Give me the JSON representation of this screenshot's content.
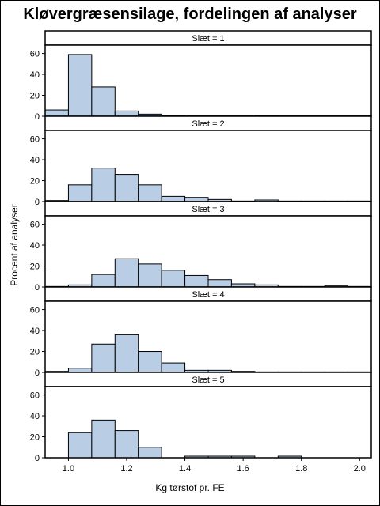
{
  "chart_data": {
    "type": "bar",
    "title": "Kløvergræsensilage, fordelingen af analyser",
    "xlabel": "Kg tørstof pr. FE",
    "ylabel": "Procent af analyser",
    "xlim": [
      0.92,
      2.04
    ],
    "ylim": [
      0,
      68
    ],
    "x_ticks": [
      1.0,
      1.2,
      1.4,
      1.6,
      1.8,
      2.0
    ],
    "x_tick_labels": [
      "1.0",
      "1.2",
      "1.4",
      "1.6",
      "1.8",
      "2.0"
    ],
    "y_ticks": [
      0,
      20,
      40,
      60
    ],
    "bin_width": 0.08,
    "bin_starts": [
      0.92,
      1.0,
      1.08,
      1.16,
      1.24,
      1.32,
      1.4,
      1.48,
      1.56,
      1.64,
      1.72,
      1.8,
      1.88,
      1.96
    ],
    "bar_fill": "#b9cde5",
    "bar_stroke": "#000000",
    "panels": [
      {
        "label": "Slæt = 1",
        "values": [
          6,
          59,
          28,
          5,
          2,
          0.5,
          0.3,
          0.3,
          0.3,
          0.5,
          0.3,
          0.3,
          0.3,
          0.3
        ]
      },
      {
        "label": "Slæt = 2",
        "values": [
          1,
          16,
          32,
          26,
          16,
          5,
          4,
          2,
          0.5,
          1.5,
          0.5,
          0.5,
          0.5,
          0.5
        ]
      },
      {
        "label": "Slæt = 3",
        "values": [
          0.5,
          2,
          12,
          27,
          22,
          16,
          11,
          7,
          3,
          2,
          0.5,
          0.5,
          1,
          0.5
        ]
      },
      {
        "label": "Slæt = 4",
        "values": [
          1,
          4,
          27,
          36,
          20,
          9,
          2,
          2,
          1,
          0.5,
          0.5,
          0.5,
          0.5,
          0.5
        ]
      },
      {
        "label": "Slæt = 5",
        "values": [
          0,
          24,
          36,
          26,
          10,
          0,
          1.5,
          1.5,
          1.5,
          0,
          1.5,
          0,
          0,
          0
        ]
      }
    ]
  }
}
